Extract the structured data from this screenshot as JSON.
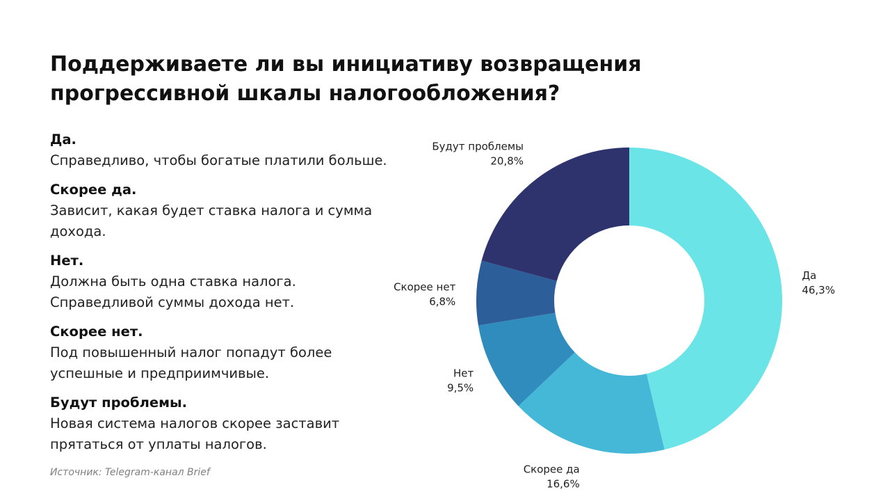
{
  "title": "Поддерживаете ли вы инициативу возвращения прогрессивной шкалы налогообложения?",
  "answers": [
    {
      "name": "Да.",
      "desc": "Справедливо, чтобы богатые платили больше."
    },
    {
      "name": "Скорее да.",
      "desc": "Зависит, какая будет ставка налога и сумма дохода."
    },
    {
      "name": "Нет.",
      "desc": "Должна быть одна ставка налога. Справедливой суммы дохода нет."
    },
    {
      "name": "Скорее нет.",
      "desc": "Под повышенный налог попадут более успешные и предприимчивые."
    },
    {
      "name": "Будут проблемы.",
      "desc": "Новая система налогов скорее заставит прятаться от уплаты налогов."
    }
  ],
  "source": "Источник: Telegram-канал Brief",
  "chart_data": {
    "type": "pie",
    "title": "Поддерживаете ли вы инициативу возвращения прогрессивной шкалы налогообложения?",
    "donut": true,
    "start": "12 o'clock",
    "direction": "clockwise",
    "categories": [
      "Да",
      "Скорее да",
      "Нет",
      "Скорее нет",
      "Будут проблемы"
    ],
    "values": [
      46.3,
      16.6,
      9.5,
      6.8,
      20.8
    ],
    "value_labels": [
      "46,3%",
      "16,6%",
      "9,5%",
      "6,8%",
      "20,8%"
    ],
    "colors": [
      "#6be4e8",
      "#45b8d8",
      "#2f8cbd",
      "#2c5f99",
      "#2e336d"
    ],
    "legend": "none"
  }
}
